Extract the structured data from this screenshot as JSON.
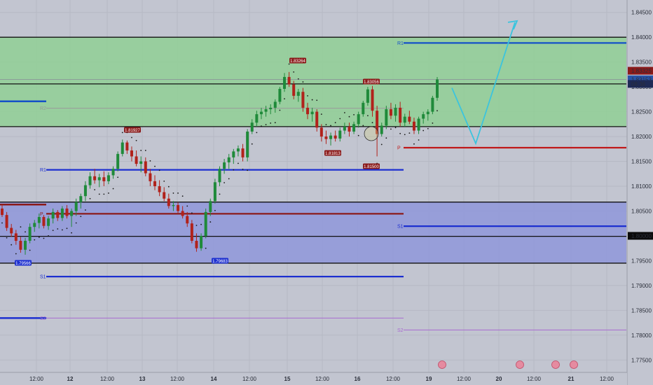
{
  "chart_data": {
    "type": "candlestick",
    "y_axis": {
      "range": [
        1.7725,
        1.8475
      ],
      "ticks": [
        "1.84500",
        "1.84000",
        "1.83500",
        "1.83000",
        "1.82500",
        "1.82000",
        "1.81500",
        "1.81000",
        "1.80500",
        "1.80000",
        "1.79500",
        "1.79000",
        "1.78500",
        "1.78000",
        "1.77500"
      ]
    },
    "x_axis": {
      "ticks": [
        "12:00",
        "12",
        "12:00",
        "13",
        "12:00",
        "14",
        "12:00",
        "15",
        "12:00",
        "16",
        "12:00",
        "19",
        "12:00",
        "20",
        "12:00",
        "21",
        "12:00"
      ]
    },
    "price_tags": [
      {
        "label": "1.83325",
        "color": "#8b1a1a",
        "value": 1.83325
      },
      {
        "label": "1.83153",
        "color": "#2854a8",
        "value": 1.83153
      },
      {
        "label": "08:36",
        "color": "#1e2a55",
        "value": 1.8306
      },
      {
        "label": "1.80000",
        "color": "#0b0b0b",
        "value": 1.8
      }
    ],
    "zones": [
      {
        "name": "supply",
        "from": 1.822,
        "to": 1.84,
        "color": "#91cf95"
      },
      {
        "name": "demand",
        "from": 1.7945,
        "to": 1.8068,
        "color": "#8f96da"
      }
    ],
    "horizontal_lines": [
      1.84,
      1.822,
      1.8306,
      1.8068,
      1.7999,
      1.7945
    ],
    "pivots": [
      {
        "label": "R1",
        "value": 1.83885,
        "from": "17",
        "to": "end",
        "color": "#1450c8"
      },
      {
        "label": "R2",
        "value": 1.8257,
        "from": "11",
        "to": "17",
        "color": "#9a9a9a"
      },
      {
        "label": "R1",
        "value": 1.8133,
        "from": "11",
        "to": "17",
        "color": "#1c2fd0"
      },
      {
        "label": "P",
        "value": 1.80445,
        "from": "11",
        "to": "17",
        "color": "#8b1a1a"
      },
      {
        "label": "P",
        "value": 1.81775,
        "from": "17",
        "to": "end",
        "color": "#c01818"
      },
      {
        "label": "S1",
        "value": 1.80195,
        "from": "17",
        "to": "end",
        "color": "#1c2fd0"
      },
      {
        "label": "S1",
        "value": 1.7918,
        "from": "11",
        "to": "17",
        "color": "#1c2fd0"
      },
      {
        "label": "S2",
        "value": 1.78345,
        "from": "11",
        "to": "17",
        "color": "#a86bd0"
      },
      {
        "label": "S2",
        "value": 1.78105,
        "from": "17",
        "to": "end",
        "color": "#a86bd0"
      }
    ],
    "swing_labels": [
      "1.79566",
      "1.81927",
      "1.79683",
      "1.83264",
      "1.81813",
      "1.83056",
      "1.81500"
    ],
    "projection": {
      "points": [
        [
          1.8298,
          "19 morning"
        ],
        [
          1.8186,
          "19 late"
        ],
        [
          1.843,
          "20"
        ]
      ],
      "color": "#3bc4de"
    },
    "candles": [
      [
        1.8055,
        1.8063,
        1.8038,
        1.8042
      ],
      [
        1.8042,
        1.8048,
        1.801,
        1.8016
      ],
      [
        1.8016,
        1.8024,
        1.7998,
        1.8005
      ],
      [
        1.8005,
        1.8012,
        1.7982,
        1.799
      ],
      [
        1.799,
        1.7998,
        1.7966,
        1.7972
      ],
      [
        1.7972,
        1.7996,
        1.7962,
        1.799
      ],
      [
        1.799,
        1.8025,
        1.7985,
        1.8018
      ],
      [
        1.8018,
        1.8032,
        1.8008,
        1.8026
      ],
      [
        1.8026,
        1.8045,
        1.8015,
        1.8038
      ],
      [
        1.8038,
        1.8042,
        1.8015,
        1.802
      ],
      [
        1.802,
        1.804,
        1.8012,
        1.8035
      ],
      [
        1.8035,
        1.8055,
        1.8025,
        1.8048
      ],
      [
        1.8048,
        1.8052,
        1.803,
        1.8036
      ],
      [
        1.8036,
        1.806,
        1.803,
        1.8055
      ],
      [
        1.8055,
        1.8062,
        1.8035,
        1.804
      ],
      [
        1.804,
        1.8055,
        1.8018,
        1.805
      ],
      [
        1.805,
        1.8075,
        1.804,
        1.8068
      ],
      [
        1.8068,
        1.8085,
        1.8055,
        1.808
      ],
      [
        1.808,
        1.811,
        1.807,
        1.8102
      ],
      [
        1.8102,
        1.8128,
        1.8095,
        1.812
      ],
      [
        1.812,
        1.8135,
        1.8105,
        1.8112
      ],
      [
        1.8112,
        1.8125,
        1.8098,
        1.8118
      ],
      [
        1.8118,
        1.813,
        1.81,
        1.811
      ],
      [
        1.811,
        1.8128,
        1.8104,
        1.8122
      ],
      [
        1.8122,
        1.814,
        1.8115,
        1.8135
      ],
      [
        1.8135,
        1.817,
        1.813,
        1.8165
      ],
      [
        1.8165,
        1.8194,
        1.816,
        1.8188
      ],
      [
        1.8188,
        1.8192,
        1.8165,
        1.8172
      ],
      [
        1.8172,
        1.818,
        1.815,
        1.816
      ],
      [
        1.816,
        1.8172,
        1.814,
        1.8145
      ],
      [
        1.8145,
        1.816,
        1.8128,
        1.815
      ],
      [
        1.815,
        1.8158,
        1.812,
        1.8126
      ],
      [
        1.8126,
        1.8135,
        1.81,
        1.811
      ],
      [
        1.811,
        1.8122,
        1.8092,
        1.81
      ],
      [
        1.81,
        1.8112,
        1.808,
        1.8088
      ],
      [
        1.8088,
        1.8098,
        1.807,
        1.8075
      ],
      [
        1.8075,
        1.8085,
        1.8055,
        1.806
      ],
      [
        1.806,
        1.807,
        1.805,
        1.8062
      ],
      [
        1.8062,
        1.8068,
        1.8045,
        1.805
      ],
      [
        1.805,
        1.806,
        1.8035,
        1.804
      ],
      [
        1.804,
        1.8048,
        1.8018,
        1.8025
      ],
      [
        1.8025,
        1.8032,
        1.7985,
        1.799
      ],
      [
        1.799,
        1.8005,
        1.7968,
        1.7975
      ],
      [
        1.7975,
        1.8005,
        1.797,
        1.8
      ],
      [
        1.8,
        1.8055,
        1.7995,
        1.8048
      ],
      [
        1.8048,
        1.8075,
        1.804,
        1.807
      ],
      [
        1.807,
        1.8115,
        1.8065,
        1.8108
      ],
      [
        1.8108,
        1.814,
        1.81,
        1.8135
      ],
      [
        1.8135,
        1.8155,
        1.8125,
        1.8148
      ],
      [
        1.8148,
        1.8165,
        1.8135,
        1.8158
      ],
      [
        1.8158,
        1.8175,
        1.8145,
        1.817
      ],
      [
        1.817,
        1.8182,
        1.816,
        1.8176
      ],
      [
        1.8176,
        1.8185,
        1.815,
        1.8158
      ],
      [
        1.8158,
        1.8215,
        1.815,
        1.821
      ],
      [
        1.821,
        1.8235,
        1.8205,
        1.8228
      ],
      [
        1.8228,
        1.8252,
        1.822,
        1.8245
      ],
      [
        1.8245,
        1.8258,
        1.8235,
        1.825
      ],
      [
        1.825,
        1.8262,
        1.824,
        1.8255
      ],
      [
        1.8255,
        1.8265,
        1.8245,
        1.8258
      ],
      [
        1.8258,
        1.8275,
        1.8248,
        1.827
      ],
      [
        1.827,
        1.83,
        1.8265,
        1.8296
      ],
      [
        1.8296,
        1.8328,
        1.829,
        1.832
      ],
      [
        1.832,
        1.833,
        1.83,
        1.8305
      ],
      [
        1.8305,
        1.8312,
        1.8275,
        1.8282
      ],
      [
        1.8282,
        1.8296,
        1.827,
        1.829
      ],
      [
        1.829,
        1.8298,
        1.825,
        1.8258
      ],
      [
        1.8258,
        1.8268,
        1.8235,
        1.8245
      ],
      [
        1.8245,
        1.8258,
        1.823,
        1.825
      ],
      [
        1.825,
        1.8255,
        1.821,
        1.8218
      ],
      [
        1.8218,
        1.8225,
        1.819,
        1.82
      ],
      [
        1.82,
        1.8212,
        1.8185,
        1.8195
      ],
      [
        1.8195,
        1.8208,
        1.8182,
        1.8202
      ],
      [
        1.8202,
        1.8212,
        1.819,
        1.8196
      ],
      [
        1.8196,
        1.8218,
        1.819,
        1.8212
      ],
      [
        1.8212,
        1.8228,
        1.8205,
        1.822
      ],
      [
        1.822,
        1.8228,
        1.82,
        1.821
      ],
      [
        1.821,
        1.823,
        1.8205,
        1.8225
      ],
      [
        1.8225,
        1.825,
        1.8218,
        1.8245
      ],
      [
        1.8245,
        1.8272,
        1.824,
        1.8268
      ],
      [
        1.8268,
        1.83,
        1.8262,
        1.8295
      ],
      [
        1.8295,
        1.8302,
        1.824,
        1.8252
      ],
      [
        1.8252,
        1.8262,
        1.816,
        1.8205
      ],
      [
        1.8205,
        1.8228,
        1.82,
        1.8222
      ],
      [
        1.8222,
        1.8262,
        1.8215,
        1.8255
      ],
      [
        1.8255,
        1.8268,
        1.8235,
        1.8242
      ],
      [
        1.8242,
        1.8265,
        1.823,
        1.8258
      ],
      [
        1.8258,
        1.827,
        1.822,
        1.8228
      ],
      [
        1.8228,
        1.8246,
        1.822,
        1.824
      ],
      [
        1.824,
        1.8252,
        1.8225,
        1.823
      ],
      [
        1.823,
        1.8238,
        1.8205,
        1.8212
      ],
      [
        1.8212,
        1.824,
        1.8205,
        1.8236
      ],
      [
        1.8236,
        1.825,
        1.8226,
        1.8245
      ],
      [
        1.8245,
        1.8255,
        1.8232,
        1.825
      ],
      [
        1.825,
        1.8282,
        1.8245,
        1.8278
      ],
      [
        1.8278,
        1.832,
        1.8272,
        1.8315
      ]
    ]
  }
}
